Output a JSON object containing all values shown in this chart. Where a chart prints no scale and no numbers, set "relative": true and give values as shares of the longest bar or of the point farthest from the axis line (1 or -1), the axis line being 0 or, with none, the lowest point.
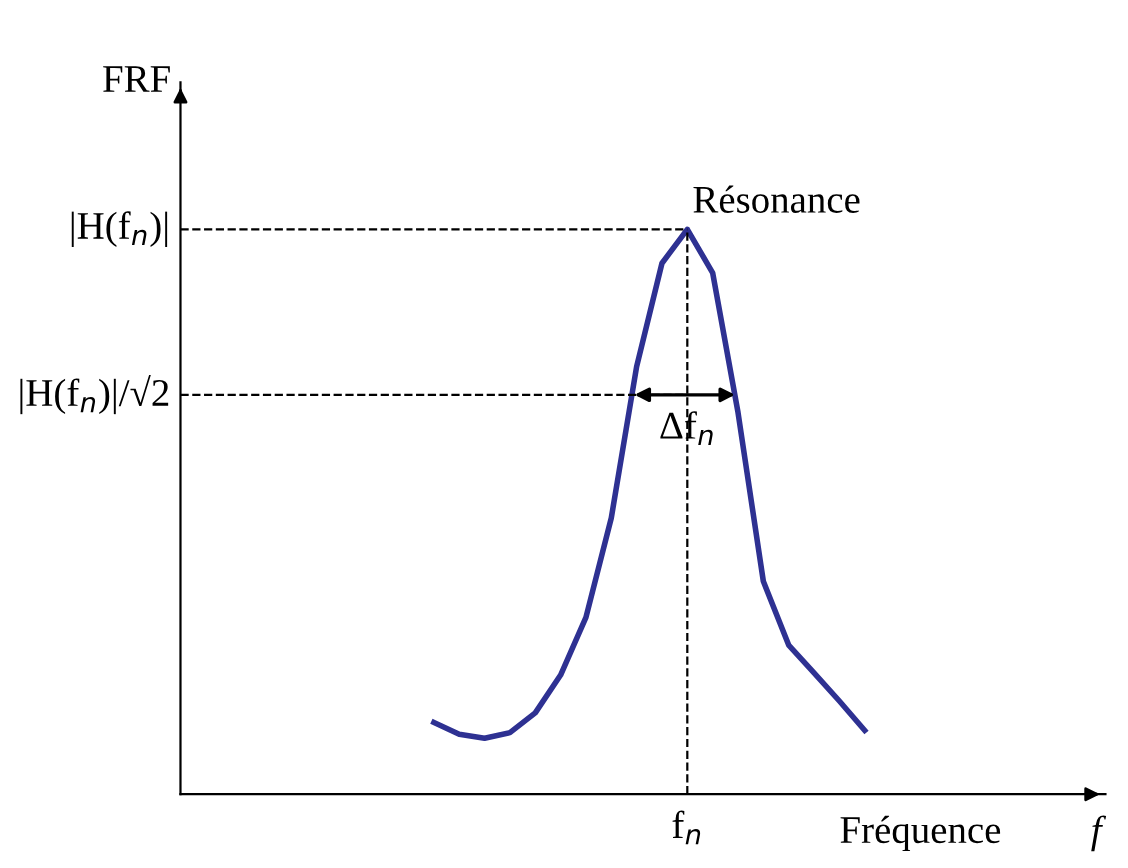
{
  "chart_data": {
    "type": "line",
    "relative": true,
    "ylabel": "FRF",
    "xlabel": "Fréquence",
    "categories": [
      null,
      null,
      null,
      null,
      null,
      null,
      null,
      null,
      null,
      null,
      null,
      null,
      null,
      null,
      null,
      null,
      null,
      null,
      null,
      null,
      null,
      null,
      null,
      null,
      null,
      null,
      null,
      null,
      null,
      null,
      null,
      null,
      null,
      null,
      null,
      null,
      null
    ],
    "series": [
      {
        "color": "#2e3192",
        "values": [
          null,
          null,
          null,
          null,
          null,
          null,
          null,
          null,
          null,
          null,
          0.127,
          0.106,
          0.099,
          0.109,
          0.144,
          0.211,
          0.313,
          0.489,
          0.757,
          0.94,
          1.0,
          0.923,
          0.676,
          0.377,
          0.264,
          0.215,
          0.165,
          0.113,
          null,
          null,
          null,
          null,
          null,
          null,
          null,
          null,
          null
        ]
      }
    ],
    "ref_lines": [
      {
        "axis": "y",
        "value": 1.0,
        "label": "|H(f$_{n}$)|",
        "line_style": "dashed",
        "color": "#000000"
      },
      {
        "axis": "y",
        "value": 0.707,
        "label": "|H(f$_{n}$)|/√2",
        "line_style": "dashed",
        "color": "#000000"
      }
    ],
    "annotations": [
      "Résonance",
      {
        "text": "Δf$_{n}$",
        "y": 0.707
      },
      "f$_{n}$",
      "f"
    ],
    "legend": false,
    "marker": "none",
    "line_style": "solid"
  }
}
